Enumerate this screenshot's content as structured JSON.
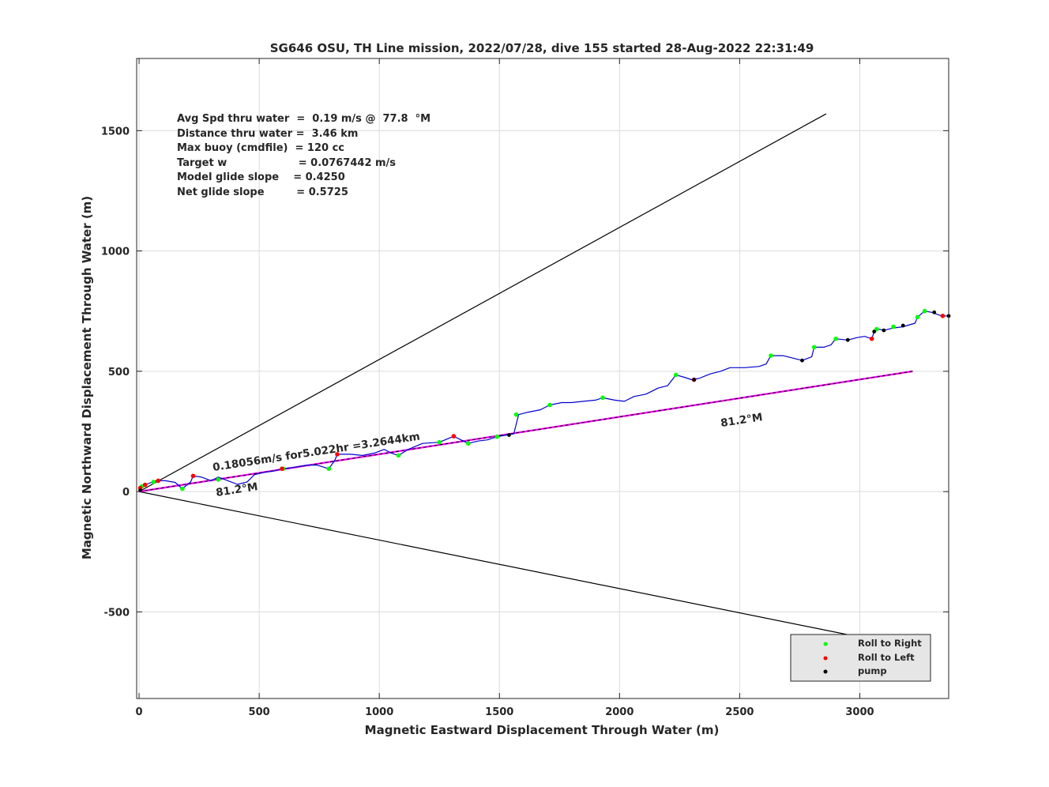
{
  "chart_data": {
    "type": "line",
    "title": "SG646 OSU, TH Line mission, 2022/07/28, dive 155 started 28-Aug-2022 22:31:49",
    "xlabel": "Magnetic Eastward Displacement Through Water (m)",
    "ylabel": "Magnetic Northward Displacement Through Water (m)",
    "xlim": [
      -10,
      3370
    ],
    "ylim": [
      -860,
      1800
    ],
    "xticks": [
      0,
      500,
      1000,
      1500,
      2000,
      2500,
      3000
    ],
    "yticks": [
      -500,
      0,
      500,
      1000,
      1500
    ],
    "grid": true,
    "stats": [
      "Avg Spd thru water  =  0.19 m/s @  77.8  °M",
      "Distance thru water =  3.46 km",
      "Max buoy (cmdfile)  = 120 cc",
      "Target w                    = 0.0767442 m/s",
      "Model glide slope    = 0.4250",
      "Net glide slope         = 0.5725"
    ],
    "annotations": {
      "speed_label": "0.18056m/s for5.022hr =3.2644km",
      "heading_near": "81.2°M",
      "heading_far": "81.2°M"
    },
    "colors": {
      "track": "#0000d0",
      "heading_line": "#000000",
      "magenta_line": "#ff00ff",
      "roll_right": "#00ff00",
      "roll_left": "#ff0000",
      "pump": "#000000",
      "legend_bg": "#e6e6e6"
    },
    "lines": {
      "upper_bound": [
        [
          0,
          0
        ],
        [
          2860,
          1570
        ]
      ],
      "lower_bound": [
        [
          0,
          0
        ],
        [
          3150,
          -635
        ]
      ],
      "heading": [
        [
          0,
          0
        ],
        [
          3220,
          500
        ]
      ]
    },
    "track": [
      [
        0,
        0
      ],
      [
        10,
        20
      ],
      [
        30,
        30
      ],
      [
        70,
        45
      ],
      [
        110,
        45
      ],
      [
        150,
        38
      ],
      [
        180,
        12
      ],
      [
        215,
        40
      ],
      [
        225,
        65
      ],
      [
        260,
        60
      ],
      [
        300,
        45
      ],
      [
        330,
        60
      ],
      [
        370,
        45
      ],
      [
        410,
        30
      ],
      [
        450,
        40
      ],
      [
        480,
        70
      ],
      [
        520,
        80
      ],
      [
        560,
        85
      ],
      [
        595,
        95
      ],
      [
        640,
        100
      ],
      [
        700,
        110
      ],
      [
        740,
        110
      ],
      [
        790,
        95
      ],
      [
        815,
        130
      ],
      [
        825,
        155
      ],
      [
        880,
        155
      ],
      [
        930,
        150
      ],
      [
        980,
        160
      ],
      [
        1020,
        175
      ],
      [
        1050,
        160
      ],
      [
        1080,
        150
      ],
      [
        1120,
        175
      ],
      [
        1180,
        200
      ],
      [
        1250,
        205
      ],
      [
        1310,
        230
      ],
      [
        1340,
        215
      ],
      [
        1370,
        200
      ],
      [
        1410,
        210
      ],
      [
        1450,
        215
      ],
      [
        1490,
        228
      ],
      [
        1530,
        235
      ],
      [
        1560,
        240
      ],
      [
        1570,
        280
      ],
      [
        1580,
        320
      ],
      [
        1620,
        330
      ],
      [
        1670,
        340
      ],
      [
        1710,
        360
      ],
      [
        1760,
        370
      ],
      [
        1800,
        370
      ],
      [
        1850,
        375
      ],
      [
        1900,
        380
      ],
      [
        1930,
        390
      ],
      [
        1980,
        380
      ],
      [
        2020,
        375
      ],
      [
        2060,
        395
      ],
      [
        2110,
        405
      ],
      [
        2160,
        430
      ],
      [
        2200,
        440
      ],
      [
        2235,
        485
      ],
      [
        2270,
        475
      ],
      [
        2300,
        465
      ],
      [
        2330,
        470
      ],
      [
        2380,
        490
      ],
      [
        2420,
        500
      ],
      [
        2460,
        515
      ],
      [
        2520,
        515
      ],
      [
        2580,
        520
      ],
      [
        2610,
        530
      ],
      [
        2630,
        565
      ],
      [
        2680,
        565
      ],
      [
        2720,
        555
      ],
      [
        2760,
        545
      ],
      [
        2800,
        560
      ],
      [
        2810,
        600
      ],
      [
        2850,
        600
      ],
      [
        2880,
        610
      ],
      [
        2900,
        635
      ],
      [
        2950,
        630
      ],
      [
        2990,
        640
      ],
      [
        3020,
        645
      ],
      [
        3050,
        635
      ],
      [
        3060,
        665
      ],
      [
        3080,
        675
      ],
      [
        3100,
        670
      ],
      [
        3140,
        680
      ],
      [
        3180,
        685
      ],
      [
        3230,
        700
      ],
      [
        3240,
        725
      ],
      [
        3270,
        750
      ],
      [
        3300,
        745
      ],
      [
        3340,
        730
      ],
      [
        3370,
        730
      ]
    ],
    "roll_right_points": [
      [
        12,
        22
      ],
      [
        60,
        40
      ],
      [
        180,
        12
      ],
      [
        330,
        50
      ],
      [
        600,
        95
      ],
      [
        790,
        95
      ],
      [
        1080,
        150
      ],
      [
        1250,
        205
      ],
      [
        1370,
        200
      ],
      [
        1490,
        228
      ],
      [
        1570,
        320
      ],
      [
        1710,
        360
      ],
      [
        1930,
        390
      ],
      [
        2235,
        485
      ],
      [
        2630,
        565
      ],
      [
        2810,
        600
      ],
      [
        2900,
        635
      ],
      [
        3070,
        675
      ],
      [
        3140,
        685
      ],
      [
        3240,
        725
      ],
      [
        3270,
        750
      ]
    ],
    "roll_left_points": [
      [
        5,
        15
      ],
      [
        25,
        28
      ],
      [
        80,
        45
      ],
      [
        225,
        65
      ],
      [
        595,
        95
      ],
      [
        825,
        155
      ],
      [
        1310,
        230
      ],
      [
        2310,
        465
      ],
      [
        3050,
        635
      ],
      [
        3345,
        730
      ]
    ],
    "pump_points": [
      [
        5,
        5
      ],
      [
        1540,
        235
      ],
      [
        2310,
        465
      ],
      [
        2760,
        545
      ],
      [
        2950,
        630
      ],
      [
        3060,
        665
      ],
      [
        3100,
        670
      ],
      [
        3180,
        690
      ],
      [
        3310,
        745
      ],
      [
        3370,
        730
      ]
    ],
    "legend": {
      "placement": "bottom-right",
      "entries": [
        "Roll to Right",
        "Roll to Left",
        "pump"
      ]
    }
  }
}
